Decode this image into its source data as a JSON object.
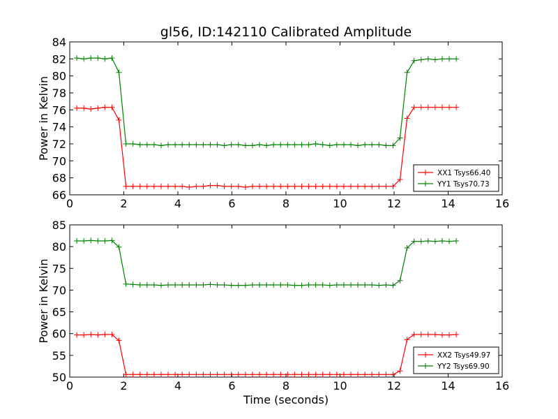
{
  "title": "gl56, ID:142110 Calibrated Amplitude",
  "chart_data": [
    {
      "type": "line",
      "xlabel": "",
      "ylabel": "Power in Kelvin",
      "xlim": [
        0,
        16
      ],
      "ylim": [
        66,
        84
      ],
      "xticks": [
        "0",
        "2",
        "4",
        "6",
        "8",
        "10",
        "12",
        "14",
        "16"
      ],
      "yticks": [
        "66",
        "68",
        "70",
        "72",
        "74",
        "76",
        "78",
        "80",
        "82",
        "84"
      ],
      "grid": false,
      "legend_position": "lower-right",
      "x": [
        0.26,
        0.52,
        0.78,
        1.04,
        1.3,
        1.56,
        1.82,
        2.08,
        2.34,
        2.6,
        2.86,
        3.12,
        3.38,
        3.64,
        3.9,
        4.16,
        4.42,
        4.68,
        4.94,
        5.2,
        5.46,
        5.72,
        5.98,
        6.24,
        6.5,
        6.76,
        7.02,
        7.28,
        7.54,
        7.8,
        8.06,
        8.32,
        8.58,
        8.84,
        9.1,
        9.36,
        9.62,
        9.88,
        10.14,
        10.4,
        10.66,
        10.92,
        11.18,
        11.44,
        11.7,
        11.96,
        12.22,
        12.48,
        12.74,
        13.0,
        13.26,
        13.52,
        13.78,
        14.04,
        14.3
      ],
      "series": [
        {
          "name": "XX1 Tsys66.40",
          "color": "#ff0000",
          "values": [
            76.2,
            76.2,
            76.1,
            76.2,
            76.3,
            76.3,
            74.8,
            67.0,
            67.0,
            67.0,
            67.0,
            67.0,
            67.0,
            67.0,
            67.0,
            67.0,
            66.9,
            67.0,
            67.0,
            67.1,
            67.1,
            67.0,
            67.0,
            67.0,
            66.9,
            67.0,
            67.0,
            67.0,
            67.0,
            67.0,
            67.0,
            67.0,
            67.0,
            67.0,
            67.0,
            67.0,
            67.0,
            67.0,
            67.0,
            67.0,
            67.0,
            67.0,
            67.0,
            67.0,
            67.0,
            67.0,
            67.8,
            75.0,
            76.3,
            76.3,
            76.3,
            76.3,
            76.3,
            76.3,
            76.3
          ]
        },
        {
          "name": "YY1 Tsys70.73",
          "color": "#008000",
          "values": [
            82.1,
            82.0,
            82.1,
            82.1,
            82.0,
            82.1,
            80.4,
            72.0,
            72.0,
            71.9,
            71.9,
            71.9,
            71.8,
            71.9,
            71.9,
            71.9,
            71.9,
            71.9,
            71.9,
            71.9,
            71.9,
            71.8,
            71.9,
            71.9,
            71.8,
            71.8,
            71.9,
            71.8,
            71.9,
            71.9,
            71.9,
            71.9,
            71.9,
            71.9,
            72.0,
            71.9,
            71.8,
            71.9,
            71.9,
            71.9,
            71.8,
            71.9,
            71.9,
            71.9,
            71.8,
            71.8,
            72.7,
            80.4,
            81.8,
            81.9,
            82.0,
            81.9,
            82.0,
            82.0,
            82.0
          ]
        }
      ]
    },
    {
      "type": "line",
      "xlabel": "Time (seconds)",
      "ylabel": "Power in Kelvin",
      "xlim": [
        0,
        16
      ],
      "ylim": [
        50,
        85
      ],
      "xticks": [
        "0",
        "2",
        "4",
        "6",
        "8",
        "10",
        "12",
        "14",
        "16"
      ],
      "yticks": [
        "50",
        "55",
        "60",
        "65",
        "70",
        "75",
        "80",
        "85"
      ],
      "grid": false,
      "legend_position": "lower-right",
      "x": [
        0.26,
        0.52,
        0.78,
        1.04,
        1.3,
        1.56,
        1.82,
        2.08,
        2.34,
        2.6,
        2.86,
        3.12,
        3.38,
        3.64,
        3.9,
        4.16,
        4.42,
        4.68,
        4.94,
        5.2,
        5.46,
        5.72,
        5.98,
        6.24,
        6.5,
        6.76,
        7.02,
        7.28,
        7.54,
        7.8,
        8.06,
        8.32,
        8.58,
        8.84,
        9.1,
        9.36,
        9.62,
        9.88,
        10.14,
        10.4,
        10.66,
        10.92,
        11.18,
        11.44,
        11.7,
        11.96,
        12.22,
        12.48,
        12.74,
        13.0,
        13.26,
        13.52,
        13.78,
        14.04,
        14.3
      ],
      "series": [
        {
          "name": "XX2 Tsys49.97",
          "color": "#ff0000",
          "values": [
            59.7,
            59.7,
            59.8,
            59.7,
            59.8,
            59.8,
            58.4,
            50.6,
            50.6,
            50.6,
            50.6,
            50.6,
            50.6,
            50.6,
            50.6,
            50.6,
            50.6,
            50.6,
            50.6,
            50.6,
            50.6,
            50.6,
            50.6,
            50.6,
            50.6,
            50.6,
            50.6,
            50.6,
            50.6,
            50.6,
            50.6,
            50.6,
            50.6,
            50.6,
            50.6,
            50.6,
            50.6,
            50.6,
            50.6,
            50.6,
            50.6,
            50.6,
            50.6,
            50.6,
            50.6,
            50.6,
            51.4,
            58.6,
            59.8,
            59.8,
            59.8,
            59.8,
            59.7,
            59.7,
            59.8
          ]
        },
        {
          "name": "YY2 Tsys69.90",
          "color": "#008000",
          "values": [
            81.3,
            81.3,
            81.4,
            81.3,
            81.3,
            81.4,
            79.9,
            71.4,
            71.3,
            71.2,
            71.2,
            71.2,
            71.1,
            71.2,
            71.2,
            71.2,
            71.2,
            71.2,
            71.2,
            71.3,
            71.2,
            71.2,
            71.1,
            71.1,
            71.1,
            71.2,
            71.2,
            71.2,
            71.2,
            71.2,
            71.2,
            71.1,
            71.1,
            71.2,
            71.2,
            71.2,
            71.1,
            71.2,
            71.2,
            71.2,
            71.2,
            71.2,
            71.2,
            71.1,
            71.2,
            71.1,
            72.2,
            79.7,
            81.2,
            81.2,
            81.3,
            81.2,
            81.3,
            81.2,
            81.3
          ]
        }
      ]
    }
  ]
}
